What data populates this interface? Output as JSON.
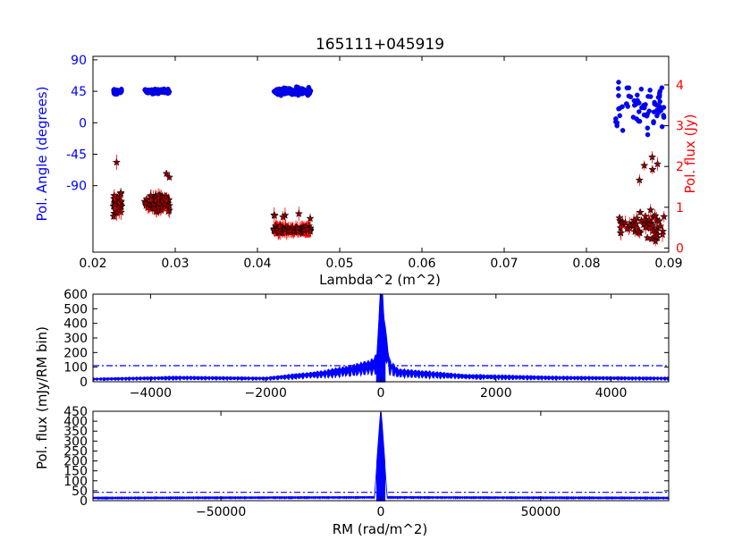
{
  "chart_data": [
    {
      "type": "scatter",
      "title": "165111+045919",
      "xlabel": "Lambda^2 (m^2)",
      "ylabel_left": "Pol. Angle (degrees)",
      "ylabel_right": "Pol. flux (Jy)",
      "xlim": [
        0.02,
        0.09
      ],
      "xticks": [
        "0.02",
        "0.03",
        "0.04",
        "0.05",
        "0.06",
        "0.07",
        "0.08",
        "0.09"
      ],
      "ylim_left": [
        -185,
        95
      ],
      "yticks_left": [
        "90",
        "45",
        "0",
        "-45",
        "-90"
      ],
      "ylim_right": [
        -0.1,
        4.7
      ],
      "yticks_right": [
        "0",
        "1",
        "2",
        "3",
        "4"
      ],
      "series": [
        {
          "axis": "left",
          "color": "#0000ff",
          "marker": "circle",
          "groups": [
            {
              "x_range": [
                0.0225,
                0.0235
              ],
              "y_center": 45,
              "y_spread": 6,
              "count": 45
            },
            {
              "x_range": [
                0.0263,
                0.0293
              ],
              "y_center": 45,
              "y_spread": 5,
              "count": 90
            },
            {
              "x_range": [
                0.042,
                0.0465
              ],
              "y_center": 45,
              "y_spread": 7,
              "count": 150
            },
            {
              "x_range": [
                0.0835,
                0.0895
              ],
              "y_center": 20,
              "y_spread": 55,
              "count": 70
            }
          ]
        },
        {
          "axis": "right",
          "color": "#8b0000",
          "errorbar_color": "#ff0000",
          "marker": "star",
          "groups": [
            {
              "x_range": [
                0.0225,
                0.0235
              ],
              "y_center": 1.05,
              "y_spread": 0.35,
              "count": 40
            },
            {
              "x_range": [
                0.0263,
                0.0293
              ],
              "y_center": 1.1,
              "y_spread": 0.25,
              "count": 90
            },
            {
              "x_range": [
                0.042,
                0.0465
              ],
              "y_center": 0.45,
              "y_spread": 0.12,
              "count": 150
            },
            {
              "x_range": [
                0.0835,
                0.0895
              ],
              "y_center": 0.55,
              "y_spread": 0.45,
              "count": 70
            }
          ]
        }
      ]
    },
    {
      "type": "line",
      "ylabel": "Pol. flux (mJy/RM bin)",
      "xlim": [
        -5000,
        5000
      ],
      "xticks": [
        "-4000",
        "-2000",
        "0",
        "2000",
        "4000"
      ],
      "ylim": [
        0,
        600
      ],
      "yticks": [
        "0",
        "100",
        "200",
        "300",
        "400",
        "500",
        "600"
      ],
      "color": "#0000ff",
      "threshold": 110,
      "peak": {
        "x": 0,
        "y": 575
      },
      "shape": [
        {
          "x": -5000,
          "y": 20
        },
        {
          "x": -3500,
          "y": 30
        },
        {
          "x": -2000,
          "y": 25
        },
        {
          "x": -1000,
          "y": 60
        },
        {
          "x": -500,
          "y": 90
        },
        {
          "x": -150,
          "y": 120
        },
        {
          "x": -60,
          "y": 150
        },
        {
          "x": 0,
          "y": 575
        },
        {
          "x": 60,
          "y": 350
        },
        {
          "x": 150,
          "y": 120
        },
        {
          "x": 300,
          "y": 70
        },
        {
          "x": 700,
          "y": 60
        },
        {
          "x": 1500,
          "y": 40
        },
        {
          "x": 3000,
          "y": 30
        },
        {
          "x": 5000,
          "y": 25
        }
      ]
    },
    {
      "type": "line",
      "xlabel": "RM (rad/m^2)",
      "xlim": [
        -90000,
        90000
      ],
      "xticks": [
        "-50000",
        "0",
        "50000"
      ],
      "ylim": [
        0,
        450
      ],
      "yticks": [
        "0",
        "50",
        "100",
        "150",
        "200",
        "250",
        "300",
        "350",
        "400",
        "450"
      ],
      "color": "#0000ff",
      "threshold": 42,
      "peak": {
        "x": 0,
        "y": 445
      },
      "shape": [
        {
          "x": -90000,
          "y": 15
        },
        {
          "x": -2000,
          "y": 18
        },
        {
          "x": 0,
          "y": 445
        },
        {
          "x": 2000,
          "y": 18
        },
        {
          "x": 90000,
          "y": 15
        }
      ]
    }
  ],
  "shared_ylabel": "Pol. flux (mJy/RM bin)"
}
